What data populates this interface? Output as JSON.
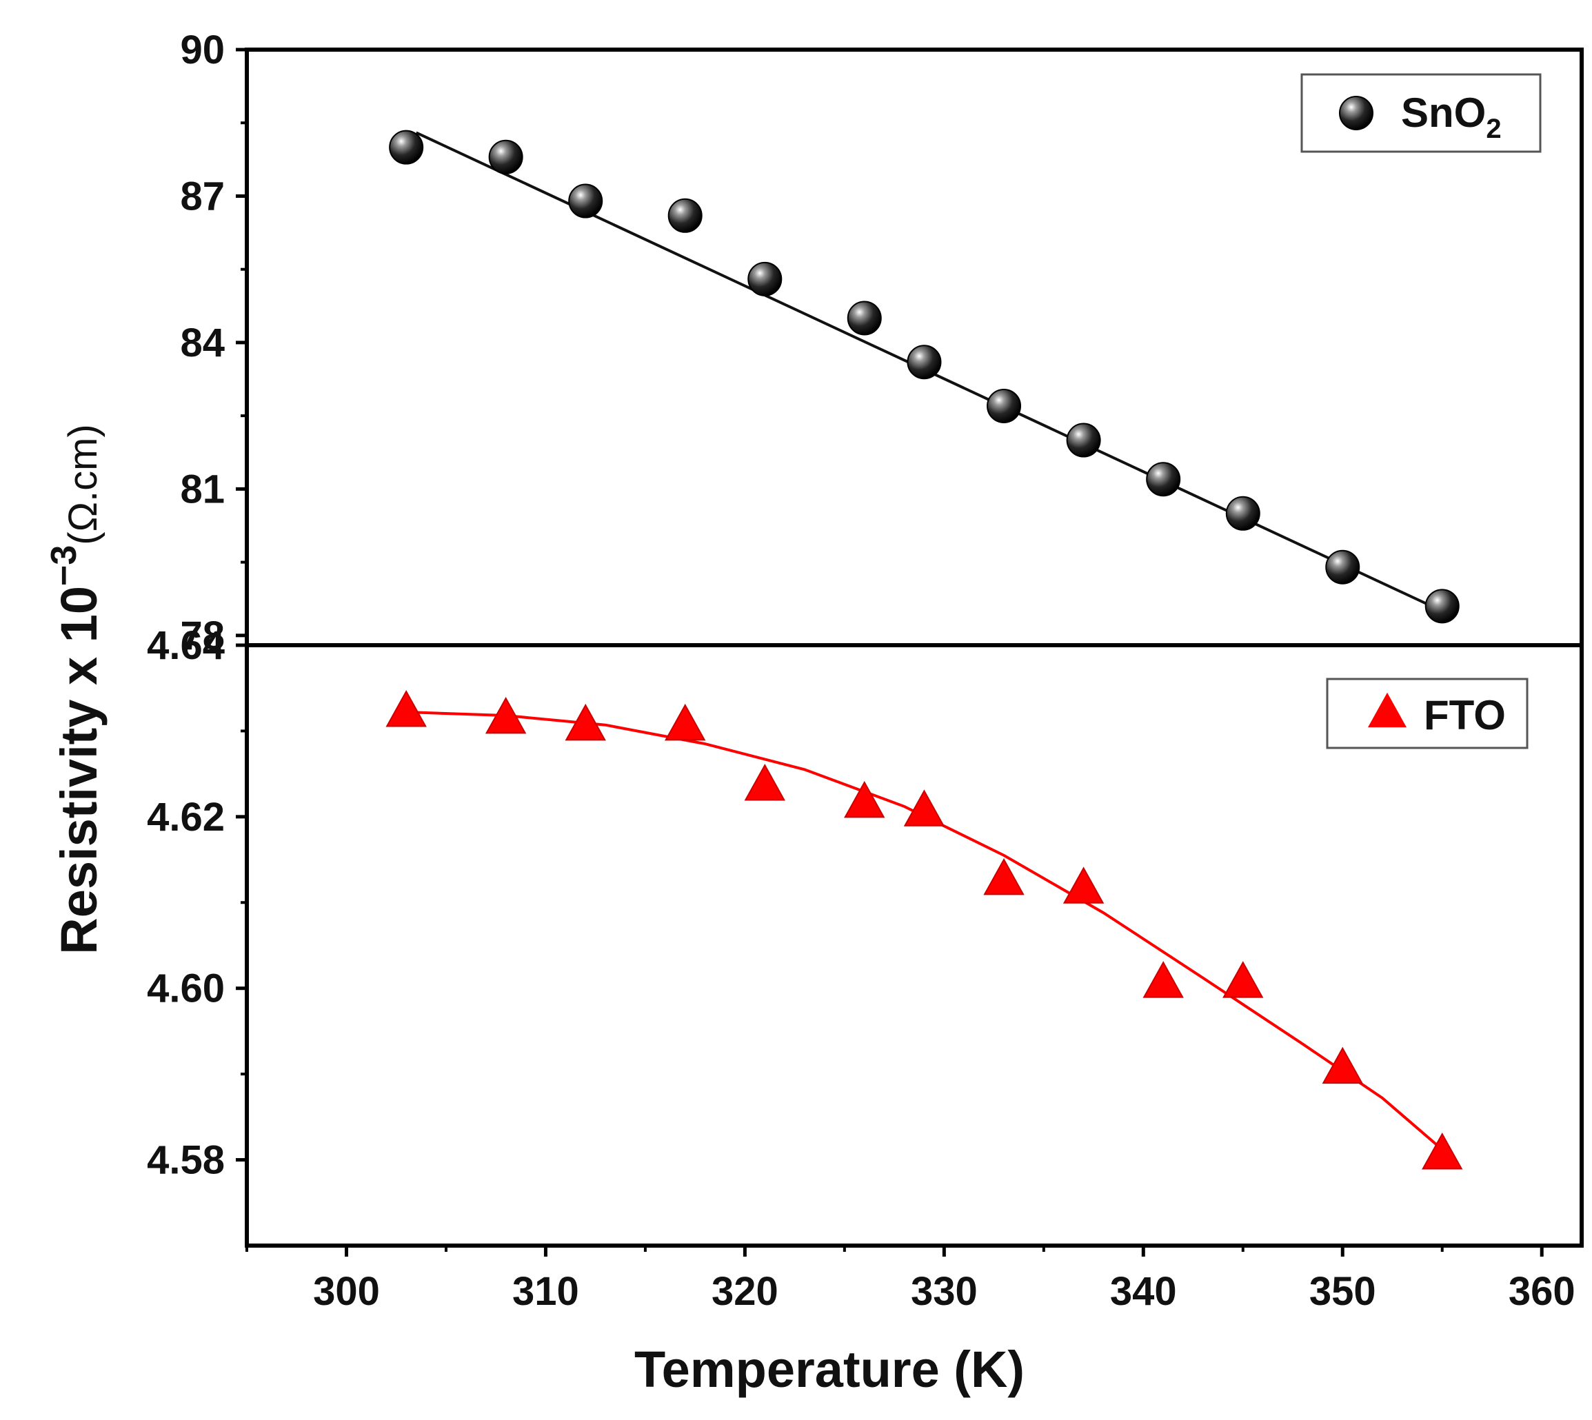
{
  "chart_data": {
    "type": "scatter",
    "xlabel": "Temperature (K)",
    "ylabel_main": "Resistivity x 10",
    "ylabel_exponent": "−3",
    "ylabel_unit": "(Ω.cm)",
    "xlim": [
      295,
      362
    ],
    "x_ticks": [
      "300",
      "310",
      "320",
      "330",
      "340",
      "350",
      "360"
    ],
    "series": [
      {
        "name": "SnO",
        "name_subscript": "2",
        "marker": "sphere",
        "color": "#111111",
        "fit_color": "#111111",
        "ylim": [
          77.8,
          90
        ],
        "y_ticks": [
          "78",
          "81",
          "84",
          "87",
          "90"
        ],
        "x": [
          303,
          308,
          312,
          317,
          321,
          326,
          329,
          333,
          337,
          341,
          345,
          350,
          355
        ],
        "values": [
          88.0,
          87.8,
          86.9,
          86.6,
          85.3,
          84.5,
          83.6,
          82.7,
          82.0,
          81.2,
          80.5,
          79.4,
          78.6
        ],
        "fit": [
          [
            303.5,
            88.3
          ],
          [
            355,
            78.5
          ]
        ]
      },
      {
        "name": "FTO",
        "marker": "triangle",
        "color": "#ff0000",
        "fit_color": "#ff0000",
        "ylim": [
          4.57,
          4.64
        ],
        "y_ticks": [
          "4.58",
          "4.60",
          "4.62",
          "4.64"
        ],
        "x": [
          303,
          308,
          312,
          317,
          321,
          326,
          329,
          333,
          337,
          341,
          345,
          350,
          355
        ],
        "values": [
          4.6321,
          4.6313,
          4.6305,
          4.6305,
          4.6235,
          4.6215,
          4.6205,
          4.6125,
          4.6115,
          4.6005,
          4.6005,
          4.5905,
          4.5805
        ],
        "fit": [
          [
            303,
            4.6322
          ],
          [
            308,
            4.6318
          ],
          [
            313,
            4.6307
          ],
          [
            318,
            4.6285
          ],
          [
            323,
            4.6255
          ],
          [
            328,
            4.6212
          ],
          [
            333,
            4.6155
          ],
          [
            338,
            4.6088
          ],
          [
            343,
            4.6012
          ],
          [
            348,
            4.5935
          ],
          [
            352,
            4.5872
          ],
          [
            355,
            4.5812
          ]
        ]
      }
    ]
  }
}
